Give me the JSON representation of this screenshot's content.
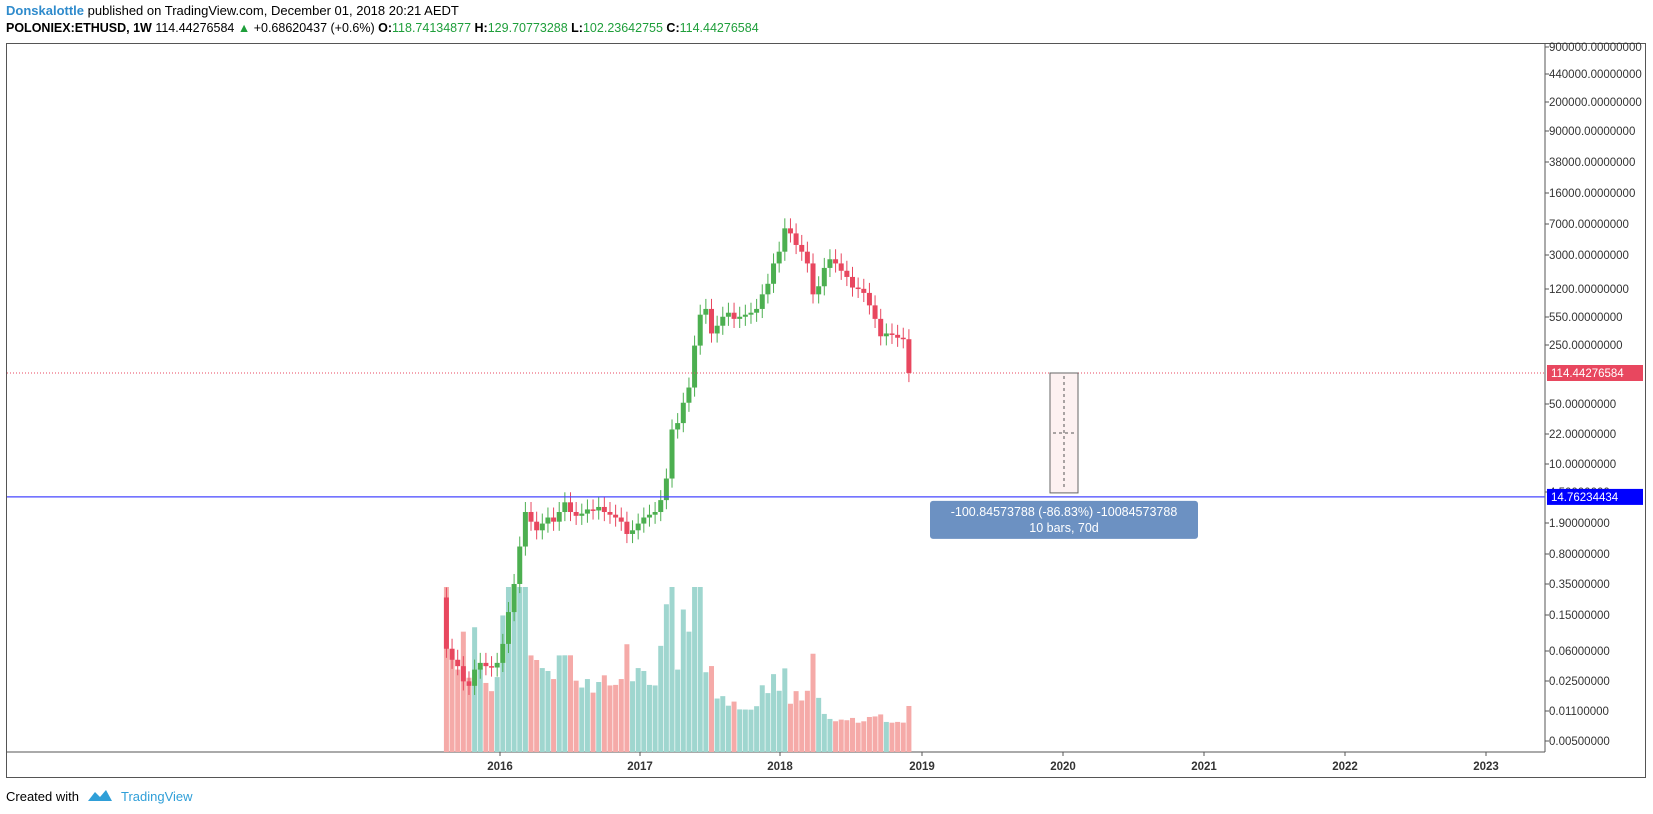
{
  "header": {
    "author": "Donskalottle",
    "published_text": " published on TradingView.com, December 01, 2018 20:21 AEDT",
    "symbol": "POLONIEX:ETHUSD, 1W",
    "last_price": "114.44276584",
    "change": "+0.68620437 (+0.6%)",
    "open_label": "O:",
    "open": "118.74134877",
    "high_label": "H:",
    "high": "129.70773288",
    "low_label": "L:",
    "low": "102.23642755",
    "close_label": "C:",
    "close": "114.44276584"
  },
  "footer": {
    "created_with": "Created with",
    "brand": "TradingView"
  },
  "colors": {
    "up": "#26a69a",
    "down": "#ef5350",
    "candle_up": "#4caf50",
    "candle_down": "#e8475f",
    "volume_up": "#9fd6cf",
    "volume_down": "#f5aaa8",
    "price_line": "#e8475f",
    "support_line": "#4747ff",
    "support_badge": "#0000ff",
    "measure_box": "#6c91c2",
    "brand": "#2f9fd8"
  },
  "chart_data": {
    "type": "candlestick",
    "scale": "log",
    "y_ticks": [
      "900000.00000000",
      "440000.00000000",
      "200000.00000000",
      "90000.00000000",
      "38000.00000000",
      "16000.00000000",
      "7000.00000000",
      "3000.00000000",
      "1200.00000000",
      "550.00000000",
      "250.00000000",
      "50.00000000",
      "22.00000000",
      "10.00000000",
      "4.50000000",
      "1.90000000",
      "0.80000000",
      "0.35000000",
      "0.15000000",
      "0.06000000",
      "0.02500000",
      "0.01100000",
      "0.00500000"
    ],
    "x_ticks": [
      "2016",
      "2017",
      "2018",
      "2019",
      "2020",
      "2021",
      "2022",
      "2023"
    ],
    "price_badge": "114.44276584",
    "support_badge": "14.76234434",
    "measure": {
      "line1": "-100.84573788 (-86.83%) -10084573788",
      "line2": "10 bars, 70d"
    },
    "price_path": [
      [
        2015.58,
        2.8
      ],
      [
        2015.62,
        1.2
      ],
      [
        2015.66,
        1.0
      ],
      [
        2015.7,
        0.9
      ],
      [
        2015.74,
        0.7
      ],
      [
        2015.78,
        0.65
      ],
      [
        2015.82,
        0.85
      ],
      [
        2015.86,
        0.95
      ],
      [
        2015.9,
        0.9
      ],
      [
        2015.94,
        0.88
      ],
      [
        2015.98,
        0.95
      ],
      [
        2016.02,
        1.3
      ],
      [
        2016.06,
        2.2
      ],
      [
        2016.1,
        3.5
      ],
      [
        2016.14,
        6.5
      ],
      [
        2016.18,
        11.5
      ],
      [
        2016.22,
        9.8
      ],
      [
        2016.26,
        8.5
      ],
      [
        2016.3,
        9.5
      ],
      [
        2016.34,
        10.5
      ],
      [
        2016.38,
        9.8
      ],
      [
        2016.42,
        11.5
      ],
      [
        2016.46,
        13.5
      ],
      [
        2016.5,
        11.5
      ],
      [
        2016.54,
        10.8
      ],
      [
        2016.58,
        11.2
      ],
      [
        2016.62,
        12.0
      ],
      [
        2016.66,
        11.8
      ],
      [
        2016.7,
        12.5
      ],
      [
        2016.74,
        11.5
      ],
      [
        2016.78,
        11.0
      ],
      [
        2016.82,
        10.5
      ],
      [
        2016.86,
        9.8
      ],
      [
        2016.9,
        8.0
      ],
      [
        2016.94,
        8.5
      ],
      [
        2016.98,
        9.5
      ],
      [
        2017.02,
        10.5
      ],
      [
        2017.06,
        11.0
      ],
      [
        2017.1,
        11.5
      ],
      [
        2017.14,
        14.0
      ],
      [
        2017.18,
        20.0
      ],
      [
        2017.22,
        45.0
      ],
      [
        2017.26,
        50.0
      ],
      [
        2017.3,
        70.0
      ],
      [
        2017.34,
        90.0
      ],
      [
        2017.38,
        180.0
      ],
      [
        2017.42,
        300.0
      ],
      [
        2017.46,
        330.0
      ],
      [
        2017.5,
        220.0
      ],
      [
        2017.54,
        250.0
      ],
      [
        2017.58,
        290.0
      ],
      [
        2017.62,
        310.0
      ],
      [
        2017.66,
        280.0
      ],
      [
        2017.7,
        290.0
      ],
      [
        2017.74,
        300.0
      ],
      [
        2017.78,
        310.0
      ],
      [
        2017.82,
        330.0
      ],
      [
        2017.86,
        420.0
      ],
      [
        2017.9,
        500.0
      ],
      [
        2017.94,
        700.0
      ],
      [
        2017.98,
        850.0
      ],
      [
        2018.02,
        1250.0
      ],
      [
        2018.06,
        1150.0
      ],
      [
        2018.1,
        950.0
      ],
      [
        2018.14,
        850.0
      ],
      [
        2018.18,
        700.0
      ],
      [
        2018.22,
        420.0
      ],
      [
        2018.26,
        480.0
      ],
      [
        2018.3,
        650.0
      ],
      [
        2018.34,
        750.0
      ],
      [
        2018.38,
        700.0
      ],
      [
        2018.42,
        620.0
      ],
      [
        2018.46,
        560.0
      ],
      [
        2018.5,
        470.0
      ],
      [
        2018.54,
        460.0
      ],
      [
        2018.58,
        430.0
      ],
      [
        2018.62,
        350.0
      ],
      [
        2018.66,
        280.0
      ],
      [
        2018.7,
        210.0
      ],
      [
        2018.74,
        220.0
      ],
      [
        2018.78,
        215.0
      ],
      [
        2018.82,
        205.0
      ],
      [
        2018.86,
        200.0
      ],
      [
        2018.9,
        114.44
      ]
    ]
  }
}
